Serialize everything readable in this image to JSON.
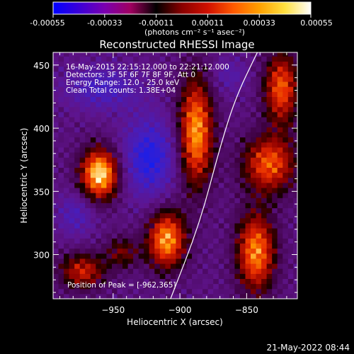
{
  "colorbar": {
    "ticks": [
      "-0.00055",
      "-0.00033",
      "-0.00011",
      "0.00011",
      "0.00033",
      "0.00055"
    ],
    "unit_label": "(photons cm⁻² s⁻¹ asec⁻²)",
    "colors": [
      "#0000ff",
      "#3b00d8",
      "#7a00b0",
      "#a00060",
      "#000000",
      "#8a0000",
      "#d01000",
      "#ff5a00",
      "#ffa000",
      "#ffe040",
      "#ffffff"
    ]
  },
  "title": "Reconstructed RHESSI Image",
  "annotations": [
    "16-May-2015 22:15:12.000 to 22:21:12.000",
    "Detectors: 3F 5F 6F 7F 8F 9F, Att 0",
    "Energy Range: 12.0 - 25.0 keV",
    "Clean    Total counts: 1.38E+04"
  ],
  "peak_label": "Position of Peak = [-962,365]",
  "timestamp": "21-May-2022 08:44",
  "chart_data": {
    "type": "heatmap",
    "title": "Reconstructed RHESSI Image",
    "xlabel": "Heliocentric X (arcsec)",
    "ylabel": "Heliocentric Y (arcsec)",
    "xlim": [
      -995,
      -812
    ],
    "ylim": [
      265,
      460
    ],
    "xticks": [
      -950,
      -900,
      -850
    ],
    "yticks": [
      300,
      350,
      400,
      450
    ],
    "xtick_labels": [
      "−950",
      "−900",
      "−850"
    ],
    "ytick_labels": [
      "300",
      "350",
      "400",
      "450"
    ],
    "value_range": [
      -0.00055,
      0.00055
    ],
    "peak": [
      -962,
      365
    ],
    "sources": [
      {
        "x": -962,
        "y": 362,
        "sx": 10,
        "sy": 14,
        "amp": 1.0
      },
      {
        "x": -912,
        "y": 310,
        "sx": 10,
        "sy": 16,
        "amp": 0.85
      },
      {
        "x": -890,
        "y": 395,
        "sx": 9,
        "sy": 30,
        "amp": 0.85
      },
      {
        "x": -845,
        "y": 300,
        "sx": 10,
        "sy": 22,
        "amp": 0.8
      },
      {
        "x": -835,
        "y": 370,
        "sx": 14,
        "sy": 16,
        "amp": 0.7
      },
      {
        "x": -826,
        "y": 430,
        "sx": 9,
        "sy": 20,
        "amp": 0.7
      },
      {
        "x": -975,
        "y": 285,
        "sx": 12,
        "sy": 10,
        "amp": 0.55
      },
      {
        "x": -945,
        "y": 300,
        "sx": 9,
        "sy": 9,
        "amp": 0.35
      }
    ],
    "negative_regions": [
      {
        "x": -925,
        "y": 375,
        "sx": 14,
        "sy": 22,
        "amp": 0.9
      },
      {
        "x": -960,
        "y": 430,
        "sx": 20,
        "sy": 12,
        "amp": 0.6
      },
      {
        "x": -980,
        "y": 330,
        "sx": 10,
        "sy": 12,
        "amp": 0.5
      },
      {
        "x": -865,
        "y": 440,
        "sx": 10,
        "sy": 10,
        "amp": 0.35
      }
    ],
    "limb_curve": [
      [
        -907,
        265
      ],
      [
        -885,
        325
      ],
      [
        -870,
        385
      ],
      [
        -858,
        425
      ],
      [
        -842,
        460
      ]
    ]
  }
}
